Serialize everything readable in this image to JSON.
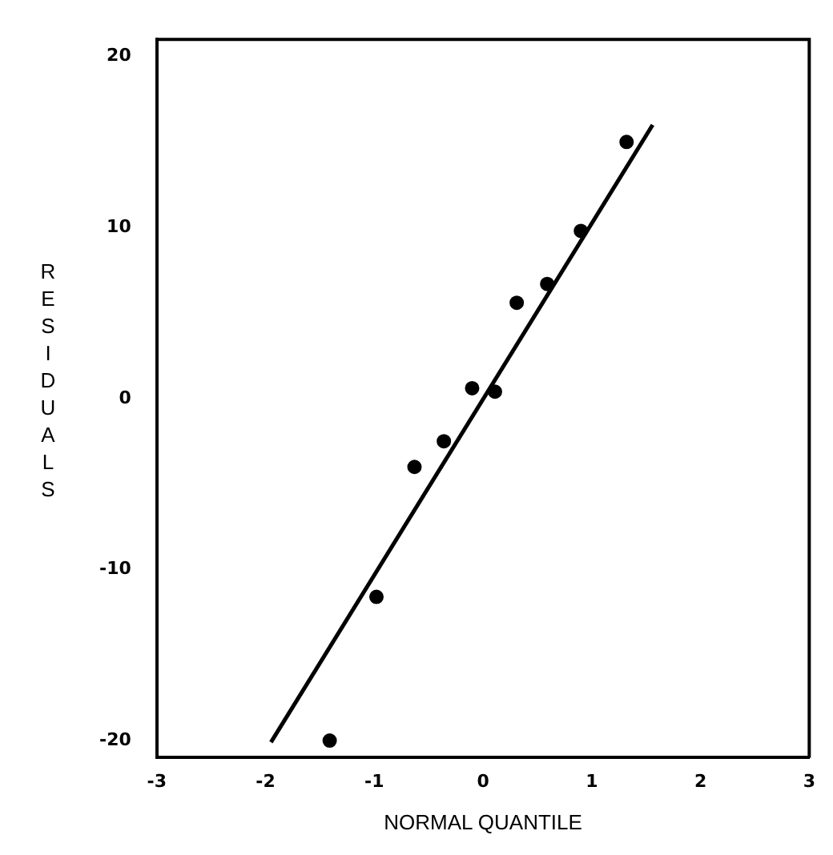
{
  "chart_data": {
    "type": "scatter",
    "xlabel": "NORMAL QUANTILE",
    "ylabel": "RESIDUALS",
    "xlim": [
      -3,
      3
    ],
    "ylim": [
      -21,
      21
    ],
    "xticks": [
      -3,
      -2,
      -1,
      0,
      1,
      2,
      3
    ],
    "yticks": [
      -20,
      -10,
      0,
      10,
      20
    ],
    "grid": false,
    "legend": false,
    "marker": "circle",
    "series": [
      {
        "type": "scatter",
        "color": "#000000",
        "x": [
          -1.41,
          -0.98,
          -0.63,
          -0.36,
          -0.1,
          0.11,
          0.31,
          0.59,
          0.9,
          1.32
        ],
        "values": [
          -20,
          -11.6,
          -4,
          -2.5,
          0.6,
          0.4,
          5.6,
          6.7,
          9.8,
          15
        ]
      },
      {
        "type": "line",
        "color": "#000000",
        "x": [
          -1.95,
          1.56
        ],
        "values": [
          -20.1,
          16
        ],
        "line_style": "solid",
        "marker": "none"
      }
    ]
  }
}
